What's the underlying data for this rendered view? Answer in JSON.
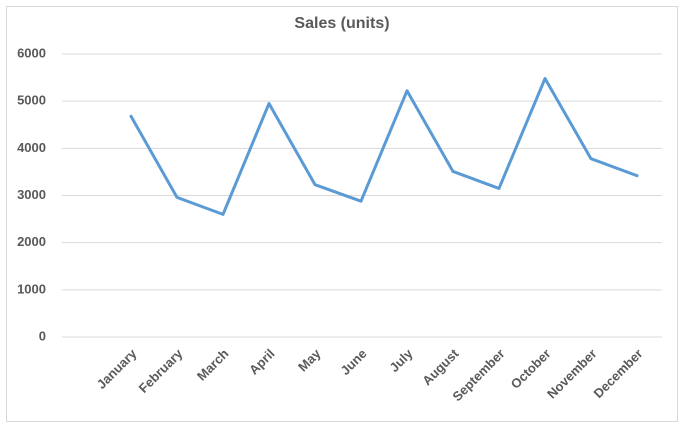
{
  "chart_data": {
    "type": "line",
    "title": "Sales (units)",
    "categories": [
      "January",
      "February",
      "March",
      "April",
      "May",
      "June",
      "July",
      "August",
      "September",
      "October",
      "November",
      "December"
    ],
    "series": [
      {
        "name": "Sales",
        "color": "#5b9bd5",
        "values": [
          4680,
          2960,
          2600,
          4950,
          3230,
          2880,
          5220,
          3510,
          3150,
          5480,
          3780,
          3420
        ]
      }
    ],
    "ylim": [
      0,
      6000
    ],
    "yticks": [
      0,
      1000,
      2000,
      3000,
      4000,
      5000,
      6000
    ],
    "grid": true
  }
}
